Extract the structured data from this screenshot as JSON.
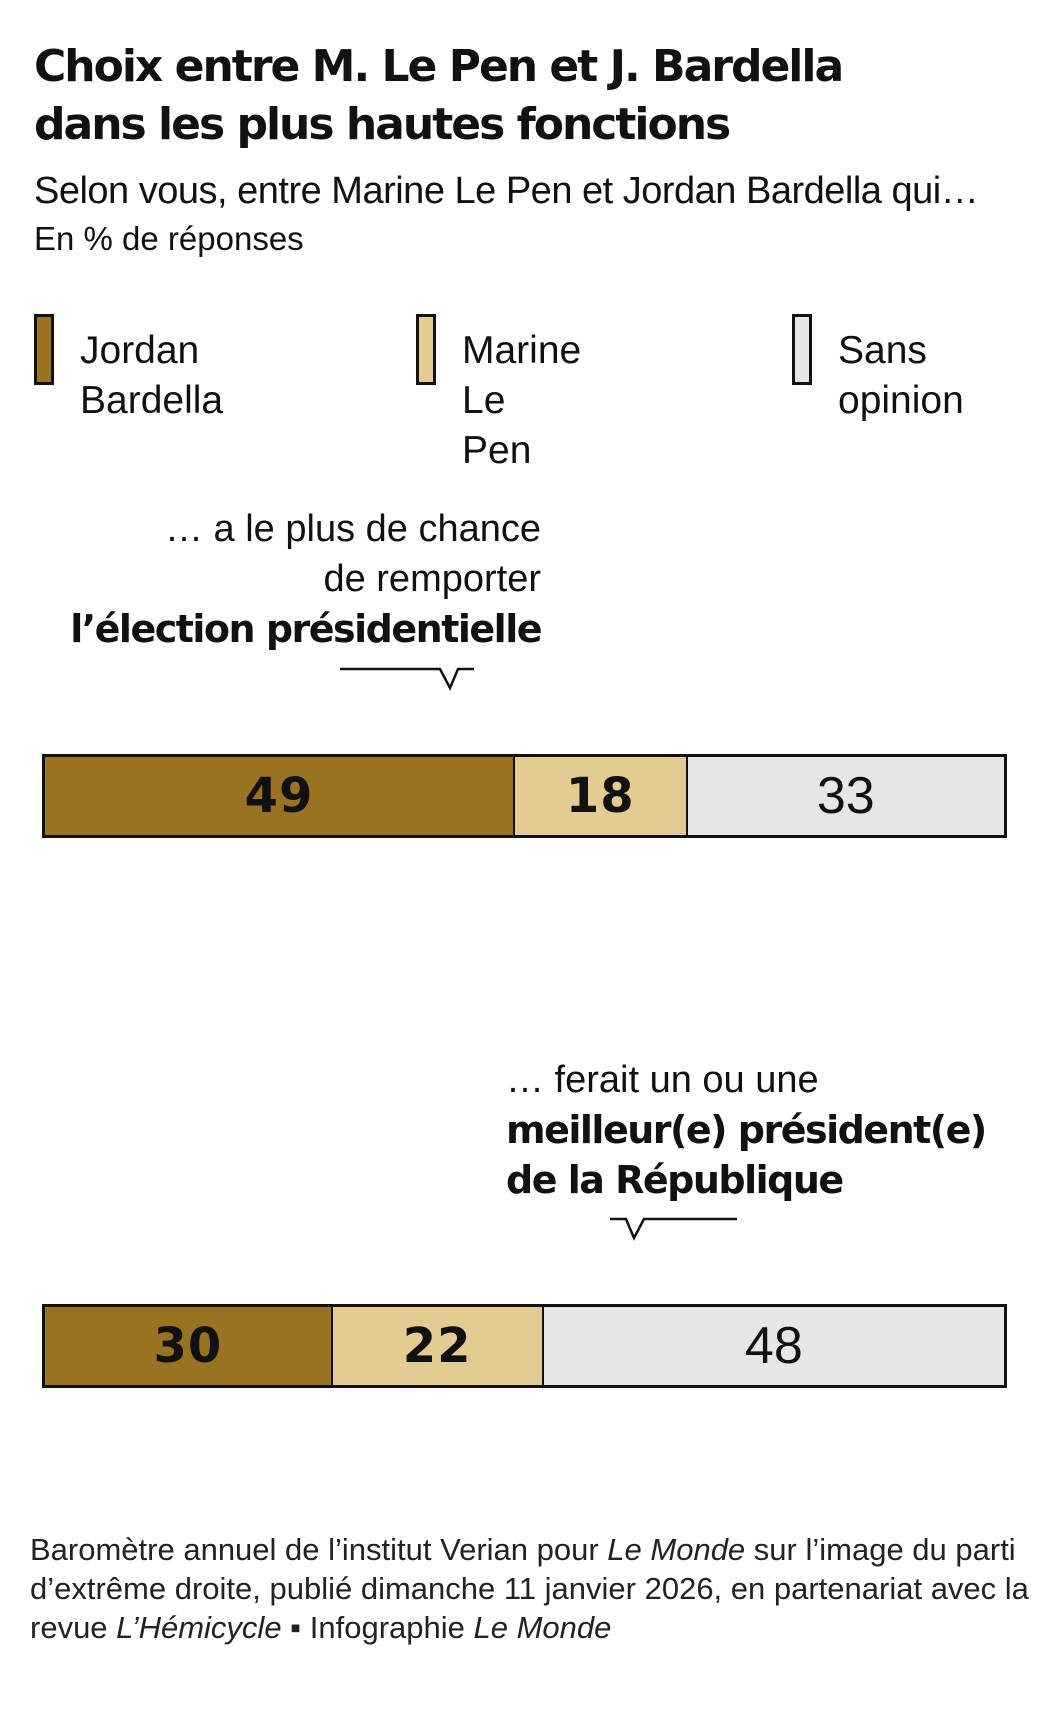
{
  "title": {
    "line1": "Choix entre M. Le Pen et J. Bardella",
    "line2": "dans les plus hautes fonctions"
  },
  "subtitle": "Selon vous, entre Marine Le Pen et Jordan Bardella qui…",
  "unit": "En % de réponses",
  "colors": {
    "bardella": "#9a7322",
    "lepen": "#e3cb92",
    "sans_opinion": "#e6e6e6"
  },
  "legend": [
    {
      "label": "Jordan Bardella",
      "color": "#9a7322"
    },
    {
      "label": "Marine Le Pen",
      "color": "#e3cb92"
    },
    {
      "label": "Sans opinion",
      "color": "#e6e6e6"
    }
  ],
  "chart_data": {
    "type": "bar",
    "stacked": true,
    "orientation": "horizontal",
    "unit": "%",
    "series_names": [
      "Jordan Bardella",
      "Marine Le Pen",
      "Sans opinion"
    ],
    "questions": [
      {
        "plain": "… a le plus de chance\nde remporter",
        "strong": "l’élection présidentielle",
        "values": [
          49,
          18,
          33
        ]
      },
      {
        "plain": "… ferait un ou une",
        "strong": "meilleur(e) président(e)\nde la République",
        "values": [
          30,
          22,
          48
        ]
      }
    ]
  },
  "source": {
    "p1": "Baromètre annuel de l’institut Verian pour ",
    "i1": "Le Monde",
    "p2": " sur l’image du parti d’extrême droite, publié dimanche 11 janvier 2026, en partenariat avec la revue ",
    "i2": "L’Hémicycle",
    "p3": " ▪ Infographie ",
    "i3": "Le Monde"
  }
}
